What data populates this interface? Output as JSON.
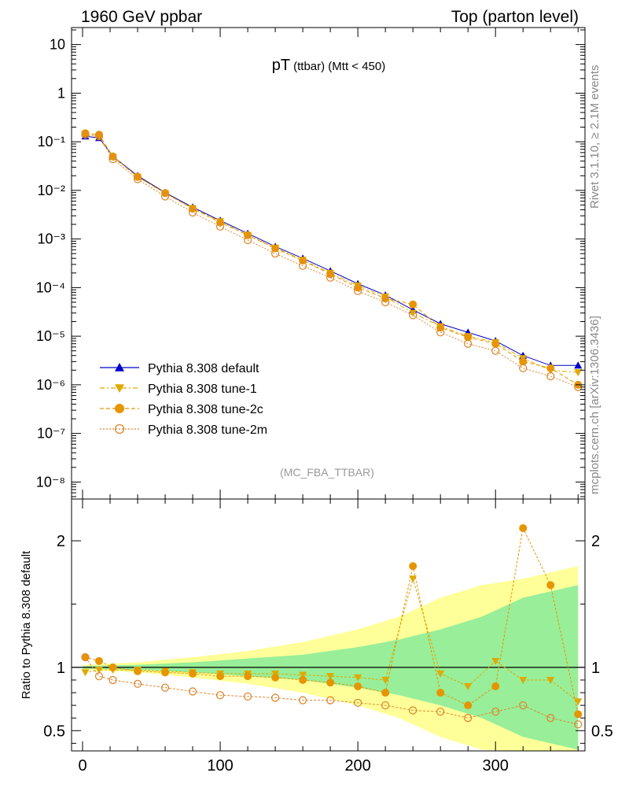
{
  "header": {
    "left": "1960 GeV ppbar",
    "right": "Top (parton level)"
  },
  "side_text": {
    "rivet": "Rivet 3.1.10, ≥ 2.1M events",
    "mcplots": "mcplots.cern.ch [arXiv:1306.3436]"
  },
  "chart_data": [
    {
      "type": "scatter",
      "panel": "main",
      "title_main": "pT",
      "title_sub": "(ttbar) (Mtt < 450)",
      "analysis_label": "(MC_FBA_TTBAR)",
      "yscale": "log",
      "xlim": [
        -8,
        365
      ],
      "ylim_exp": [
        -8.35,
        1.35
      ],
      "ytick_labels": [
        "10⁻⁸",
        "10⁻⁷",
        "10⁻⁶",
        "10⁻⁵",
        "10⁻⁴",
        "10⁻³",
        "10⁻²",
        "10⁻¹",
        "1",
        "10"
      ],
      "ytick_exps": [
        -8,
        -7,
        -6,
        -5,
        -4,
        -3,
        -2,
        -1,
        0,
        1
      ],
      "legend_position": "lower-left",
      "series": [
        {
          "name": "Pythia 8.308 default",
          "color": "#0000cc",
          "marker": "triangle-up",
          "line": "solid",
          "points": [
            [
              2,
              0.13
            ],
            [
              12,
              0.12
            ],
            [
              22,
              0.05
            ],
            [
              40,
              0.02
            ],
            [
              60,
              0.009
            ],
            [
              80,
              0.0045
            ],
            [
              100,
              0.0024
            ],
            [
              120,
              0.0013
            ],
            [
              140,
              0.0007
            ],
            [
              160,
              0.0004
            ],
            [
              180,
              0.00022
            ],
            [
              200,
              0.00012
            ],
            [
              220,
              7e-05
            ],
            [
              240,
              3.5e-05
            ],
            [
              260,
              1.8e-05
            ],
            [
              280,
              1.2e-05
            ],
            [
              300,
              8e-06
            ],
            [
              320,
              4e-06
            ],
            [
              340,
              2.5e-06
            ],
            [
              360,
              2.5e-06
            ]
          ]
        },
        {
          "name": "Pythia 8.308 tune-1",
          "color": "#ddaa00",
          "marker": "triangle-down",
          "line": "dashdot",
          "points": [
            [
              2,
              0.14
            ],
            [
              12,
              0.13
            ],
            [
              22,
              0.048
            ],
            [
              40,
              0.019
            ],
            [
              60,
              0.0087
            ],
            [
              80,
              0.0043
            ],
            [
              100,
              0.0023
            ],
            [
              120,
              0.0012
            ],
            [
              140,
              0.00066
            ],
            [
              160,
              0.00037
            ],
            [
              180,
              0.0002
            ],
            [
              200,
              0.00011
            ],
            [
              220,
              6.5e-05
            ],
            [
              240,
              3e-05
            ],
            [
              260,
              1.6e-05
            ],
            [
              280,
              1e-05
            ],
            [
              300,
              7.5e-06
            ],
            [
              320,
              3.5e-06
            ],
            [
              340,
              2e-06
            ],
            [
              360,
              1.8e-06
            ]
          ]
        },
        {
          "name": "Pythia 8.308 tune-2c",
          "color": "#e69500",
          "marker": "circle",
          "line": "dashed",
          "points": [
            [
              2,
              0.15
            ],
            [
              12,
              0.14
            ],
            [
              22,
              0.05
            ],
            [
              40,
              0.019
            ],
            [
              60,
              0.0088
            ],
            [
              80,
              0.0042
            ],
            [
              100,
              0.0022
            ],
            [
              120,
              0.0012
            ],
            [
              140,
              0.00064
            ],
            [
              160,
              0.00036
            ],
            [
              180,
              0.00019
            ],
            [
              200,
              0.0001
            ],
            [
              220,
              6e-05
            ],
            [
              240,
              4.5e-05
            ],
            [
              260,
              1.5e-05
            ],
            [
              280,
              9.5e-06
            ],
            [
              300,
              7e-06
            ],
            [
              320,
              3e-06
            ],
            [
              340,
              2.2e-06
            ],
            [
              360,
              1e-06
            ]
          ]
        },
        {
          "name": "Pythia 8.308 tune-2m",
          "color": "#dd8833",
          "marker": "open-circle",
          "line": "dotted",
          "points": [
            [
              2,
              0.14
            ],
            [
              12,
              0.13
            ],
            [
              22,
              0.044
            ],
            [
              40,
              0.017
            ],
            [
              60,
              0.0075
            ],
            [
              80,
              0.0035
            ],
            [
              100,
              0.0018
            ],
            [
              120,
              0.00095
            ],
            [
              140,
              0.0005
            ],
            [
              160,
              0.00028
            ],
            [
              180,
              0.00016
            ],
            [
              200,
              8.5e-05
            ],
            [
              220,
              5e-05
            ],
            [
              240,
              2.7e-05
            ],
            [
              260,
              1.2e-05
            ],
            [
              280,
              7e-06
            ],
            [
              300,
              5e-06
            ],
            [
              320,
              2.2e-06
            ],
            [
              340,
              1.5e-06
            ],
            [
              360,
              9e-07
            ]
          ]
        }
      ]
    },
    {
      "type": "scatter",
      "panel": "ratio",
      "ylabel": "Ratio to Pythia 8.308 default",
      "xlim": [
        -8,
        365
      ],
      "ylim": [
        0.34,
        2.33
      ],
      "xtick_labels": [
        "0",
        "100",
        "200",
        "300"
      ],
      "xtick_values": [
        0,
        100,
        200,
        300
      ],
      "ytick_labels": [
        "0.5",
        "1",
        "2"
      ],
      "ytick_values": [
        0.5,
        1,
        2
      ],
      "reference_line": 1,
      "uncertainty_band": {
        "x": [
          0,
          40,
          80,
          120,
          160,
          200,
          230,
          260,
          290,
          320,
          340,
          360
        ],
        "inner_half": [
          0.01,
          0.02,
          0.04,
          0.07,
          0.1,
          0.16,
          0.22,
          0.3,
          0.4,
          0.55,
          0.6,
          0.65
        ],
        "outer_half": [
          0.02,
          0.04,
          0.08,
          0.13,
          0.2,
          0.3,
          0.4,
          0.55,
          0.65,
          0.7,
          0.75,
          0.8
        ]
      },
      "series": [
        {
          "name": "Pythia 8.308 tune-1",
          "color": "#ddaa00",
          "marker": "triangle-down",
          "points": [
            [
              2,
              0.96
            ],
            [
              12,
              0.98
            ],
            [
              22,
              0.98
            ],
            [
              40,
              0.98
            ],
            [
              60,
              0.97
            ],
            [
              80,
              0.96
            ],
            [
              100,
              0.95
            ],
            [
              120,
              0.95
            ],
            [
              140,
              0.95
            ],
            [
              160,
              0.94
            ],
            [
              180,
              0.93
            ],
            [
              200,
              0.92
            ],
            [
              220,
              0.9
            ],
            [
              240,
              1.7
            ],
            [
              260,
              0.95
            ],
            [
              280,
              0.85
            ],
            [
              300,
              1.05
            ],
            [
              320,
              0.9
            ],
            [
              340,
              0.9
            ],
            [
              360,
              0.73
            ]
          ]
        },
        {
          "name": "Pythia 8.308 tune-2c",
          "color": "#e69500",
          "marker": "circle",
          "points": [
            [
              2,
              1.08
            ],
            [
              12,
              1.05
            ],
            [
              22,
              1.0
            ],
            [
              40,
              0.97
            ],
            [
              60,
              0.96
            ],
            [
              80,
              0.95
            ],
            [
              100,
              0.93
            ],
            [
              120,
              0.93
            ],
            [
              140,
              0.92
            ],
            [
              160,
              0.9
            ],
            [
              180,
              0.88
            ],
            [
              200,
              0.85
            ],
            [
              220,
              0.8
            ],
            [
              240,
              1.8
            ],
            [
              260,
              0.8
            ],
            [
              280,
              0.7
            ],
            [
              300,
              0.85
            ],
            [
              320,
              2.1
            ],
            [
              340,
              1.65
            ],
            [
              360,
              0.63
            ]
          ]
        },
        {
          "name": "Pythia 8.308 tune-2m",
          "color": "#dd8833",
          "marker": "open-circle",
          "points": [
            [
              2,
              1.08
            ],
            [
              12,
              0.93
            ],
            [
              22,
              0.9
            ],
            [
              40,
              0.87
            ],
            [
              60,
              0.84
            ],
            [
              80,
              0.81
            ],
            [
              100,
              0.78
            ],
            [
              120,
              0.77
            ],
            [
              140,
              0.76
            ],
            [
              160,
              0.74
            ],
            [
              180,
              0.74
            ],
            [
              200,
              0.72
            ],
            [
              220,
              0.7
            ],
            [
              240,
              0.66
            ],
            [
              260,
              0.65
            ],
            [
              280,
              0.6
            ],
            [
              300,
              0.65
            ],
            [
              320,
              0.7
            ],
            [
              340,
              0.6
            ],
            [
              360,
              0.55
            ]
          ]
        }
      ]
    }
  ]
}
